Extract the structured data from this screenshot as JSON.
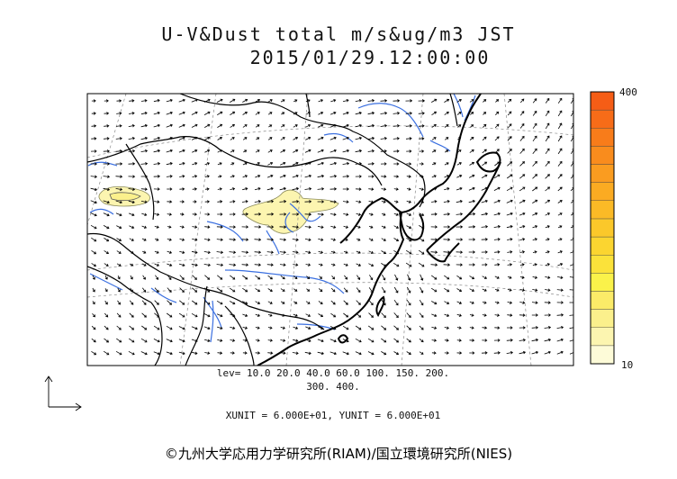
{
  "header": {
    "title": "U-V&Dust total m/s&ug/m3 JST",
    "datetime": "2015/01/29.12:00:00"
  },
  "legend_levels": {
    "line1": "lev= 10.0 20.0 40.0 60.0 100. 150. 200.",
    "line2": "300. 400."
  },
  "vector_units": "XUNIT = 6.000E+01, YUNIT = 6.000E+01",
  "colorbar": {
    "max_label": "400",
    "min_label": "10",
    "colors": [
      "#fdfbd8",
      "#fcf5b0",
      "#fbf08c",
      "#fbeb68",
      "#faf24a",
      "#fbe23a",
      "#fbd530",
      "#fbc82a",
      "#fbba26",
      "#fbab22",
      "#fa9c20",
      "#f98c1d",
      "#f87c1a",
      "#f76c18",
      "#f55d16"
    ]
  },
  "credit": "©九州大学応用力学研究所(RIAM)/国立環境研究所(NIES)"
}
